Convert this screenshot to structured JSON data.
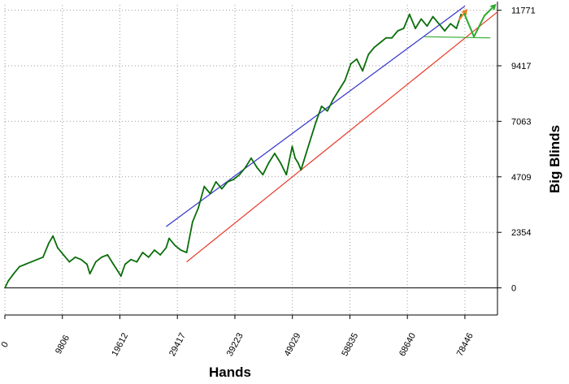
{
  "chart_data": {
    "type": "line",
    "title": "",
    "xlabel": "Hands",
    "ylabel": "Big Blinds",
    "xlim": [
      0,
      84000
    ],
    "ylim": [
      -1150,
      12000
    ],
    "x_ticks": [
      0,
      9806,
      19612,
      29417,
      39223,
      49029,
      58835,
      68640,
      78446
    ],
    "x_tick_labels": [
      "0",
      "9806",
      "19612",
      "29417",
      "39223",
      "49029",
      "58835",
      "68640",
      "78446"
    ],
    "y_ticks": [
      0,
      2354,
      4709,
      7063,
      9417,
      11771
    ],
    "y_tick_labels": [
      "0",
      "2354",
      "4709",
      "7063",
      "9417",
      "11771"
    ],
    "grid": true,
    "series": [
      {
        "color": "#0a6e0a",
        "x": [
          0,
          600,
          1500,
          2500,
          3500,
          4500,
          5500,
          6500,
          7500,
          8200,
          9000,
          10000,
          11000,
          12000,
          13000,
          14000,
          14500,
          15500,
          16500,
          17500,
          18500,
          19300,
          19800,
          20500,
          21500,
          22500,
          23500,
          24500,
          25500,
          26500,
          27500,
          28000,
          29000,
          30000,
          31000,
          32000,
          33000,
          34000,
          35000,
          36000,
          37000,
          38000,
          39000,
          40000,
          41000,
          42000,
          43000,
          44000,
          45000,
          46000,
          47000,
          48000,
          48500,
          49000,
          49500,
          50000,
          50500,
          51000,
          52000,
          53000,
          54000,
          55000,
          56000,
          57000,
          58000,
          59000,
          60000,
          61000,
          62000,
          63000,
          64000,
          65000,
          66000,
          67000,
          68000,
          69000,
          70000,
          71000,
          72000,
          73000,
          74000,
          75000,
          76000,
          77000,
          77800
        ],
        "y": [
          0,
          300,
          600,
          900,
          1000,
          1100,
          1200,
          1300,
          1900,
          2200,
          1700,
          1400,
          1100,
          1300,
          1200,
          1000,
          600,
          1100,
          1300,
          1400,
          1000,
          700,
          500,
          1000,
          1200,
          1100,
          1500,
          1300,
          1600,
          1400,
          1700,
          2100,
          1800,
          1600,
          1500,
          2800,
          3400,
          4300,
          4000,
          4500,
          4200,
          4500,
          4600,
          4800,
          5100,
          5500,
          5100,
          4800,
          5300,
          5700,
          5300,
          4800,
          5400,
          6000,
          5500,
          5300,
          5000,
          5400,
          6200,
          7000,
          7700,
          7500,
          8000,
          8400,
          8800,
          9500,
          9700,
          9200,
          9900,
          10200,
          10400,
          10600,
          10600,
          10900,
          11000,
          11600,
          11000,
          11400,
          11100,
          11500,
          11200,
          10900,
          11200,
          11000,
          11600
        ]
      }
    ],
    "annotations": [
      {
        "kind": "trend_line",
        "color": "#3333cc",
        "x": [
          27500,
          78446
        ],
        "y": [
          2600,
          11950
        ]
      },
      {
        "kind": "trend_line",
        "color": "#e83a2a",
        "x": [
          31000,
          84000
        ],
        "y": [
          1100,
          11700
        ]
      },
      {
        "kind": "level_line",
        "color": "#2eaa2e",
        "x": [
          71500,
          82800
        ],
        "y": [
          10650,
          10600
        ]
      },
      {
        "kind": "arrow",
        "color": "#f07a20",
        "x": [
          77400,
          78700
        ],
        "y": [
          11350,
          11770
        ]
      },
      {
        "kind": "arrow",
        "color": "#2eaa2e",
        "x": [
          78300,
          80000,
          81800,
          83600
        ],
        "y": [
          11650,
          10650,
          11550,
          11990
        ]
      }
    ]
  }
}
